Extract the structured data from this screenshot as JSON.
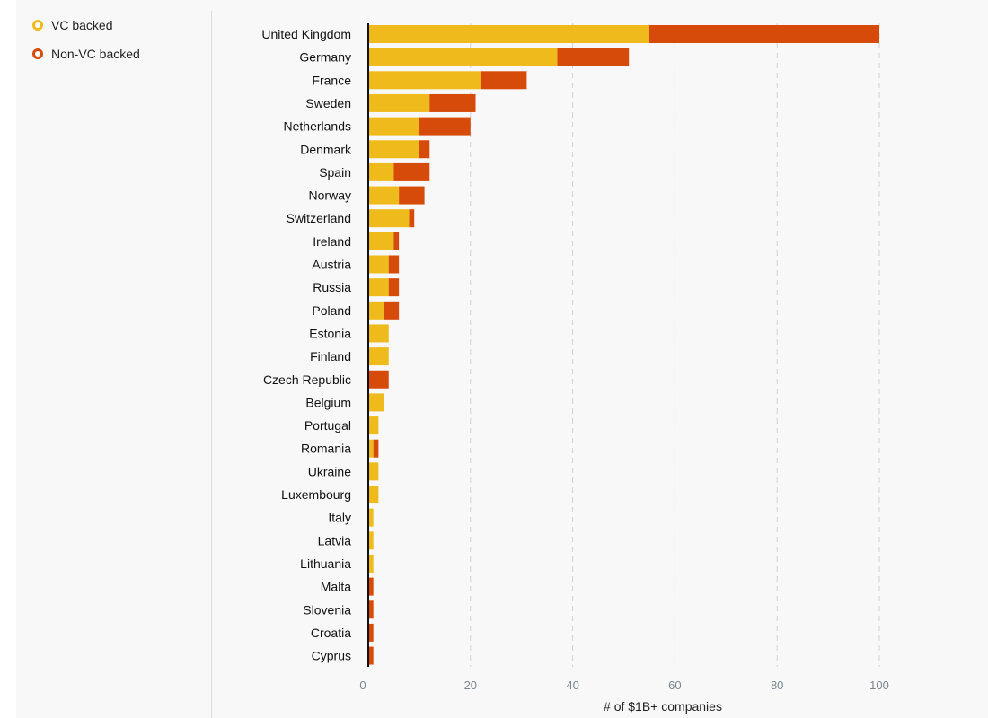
{
  "legend": {
    "vc_label": "VC backed",
    "nonvc_label": "Non-VC backed"
  },
  "colors": {
    "vc": "#efbb1c",
    "nonvc": "#d64a0a",
    "grid": "#d0d0d0",
    "axis": "#111111",
    "tick": "#7a8590"
  },
  "chart_data": {
    "type": "bar",
    "orientation": "horizontal",
    "stacked": true,
    "xlabel": "# of $1B+ companies",
    "xlim": [
      0,
      100
    ],
    "xticks": [
      0,
      20,
      40,
      60,
      80,
      100
    ],
    "grid": "vertical dashed",
    "legend_position": "top-left",
    "categories": [
      "United Kingdom",
      "Germany",
      "France",
      "Sweden",
      "Netherlands",
      "Denmark",
      "Spain",
      "Norway",
      "Switzerland",
      "Ireland",
      "Austria",
      "Russia",
      "Poland",
      "Estonia",
      "Finland",
      "Czech Republic",
      "Belgium",
      "Portugal",
      "Romania",
      "Ukraine",
      "Luxembourg",
      "Italy",
      "Latvia",
      "Lithuania",
      "Malta",
      "Slovenia",
      "Croatia",
      "Cyprus"
    ],
    "series": [
      {
        "name": "VC backed",
        "values": [
          55,
          37,
          22,
          12,
          10,
          10,
          5,
          6,
          8,
          5,
          4,
          4,
          3,
          4,
          4,
          0,
          3,
          2,
          1,
          2,
          2,
          1,
          1,
          1,
          0,
          0,
          0,
          0
        ]
      },
      {
        "name": "Non-VC backed",
        "values": [
          45,
          14,
          9,
          9,
          10,
          2,
          7,
          5,
          1,
          1,
          2,
          2,
          3,
          0,
          0,
          4,
          0,
          0,
          1,
          0,
          0,
          0,
          0,
          0,
          1,
          1,
          1,
          1
        ]
      }
    ]
  }
}
